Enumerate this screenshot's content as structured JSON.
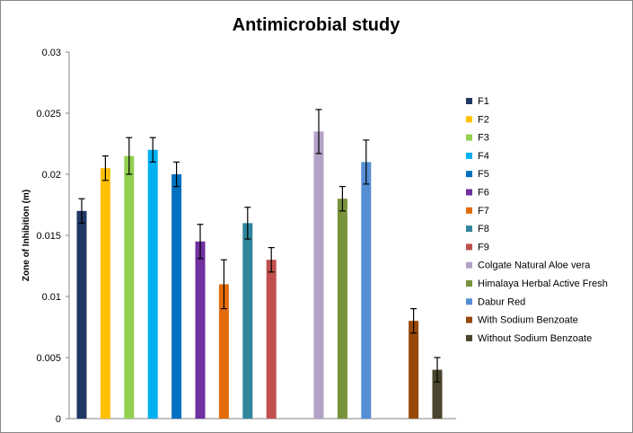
{
  "chart_data": {
    "type": "bar",
    "title": "Antimicrobial study",
    "xlabel": "",
    "ylabel": "Zone of Inhibition (m)",
    "ylim": [
      0,
      0.03
    ],
    "yticks": [
      "0",
      "0.005",
      "0.01",
      "0.015",
      "0.02",
      "0.025",
      "0.03"
    ],
    "grid": false,
    "legend_position": "right",
    "series": [
      {
        "name": "F1",
        "value": 0.017,
        "error": 0.001,
        "color": "#1f3864",
        "group": 0
      },
      {
        "name": "F2",
        "value": 0.0205,
        "error": 0.001,
        "color": "#ffc000",
        "group": 0
      },
      {
        "name": "F3",
        "value": 0.0215,
        "error": 0.0015,
        "color": "#92d050",
        "group": 0
      },
      {
        "name": "F4",
        "value": 0.022,
        "error": 0.001,
        "color": "#00b0f0",
        "group": 0
      },
      {
        "name": "F5",
        "value": 0.02,
        "error": 0.001,
        "color": "#0070c0",
        "group": 0
      },
      {
        "name": "F6",
        "value": 0.0145,
        "error": 0.0014,
        "color": "#7030a0",
        "group": 0
      },
      {
        "name": "F7",
        "value": 0.011,
        "error": 0.002,
        "color": "#e46c0a",
        "group": 0
      },
      {
        "name": "F8",
        "value": 0.016,
        "error": 0.0013,
        "color": "#31859c",
        "group": 0
      },
      {
        "name": "F9",
        "value": 0.013,
        "error": 0.001,
        "color": "#c0504d",
        "group": 0
      },
      {
        "name": "Colgate Natural Aloe vera",
        "value": 0.0235,
        "error": 0.0018,
        "color": "#b3a2c7",
        "group": 1
      },
      {
        "name": "Himalaya Herbal Active Fresh",
        "value": 0.018,
        "error": 0.001,
        "color": "#77933c",
        "group": 1
      },
      {
        "name": "Dabur Red",
        "value": 0.021,
        "error": 0.0018,
        "color": "#558ed5",
        "group": 1
      },
      {
        "name": "With Sodium Benzoate",
        "value": 0.008,
        "error": 0.001,
        "color": "#984807",
        "group": 2
      },
      {
        "name": "Without Sodium Benzoate",
        "value": 0.004,
        "error": 0.001,
        "color": "#49452e",
        "group": 2
      }
    ]
  }
}
